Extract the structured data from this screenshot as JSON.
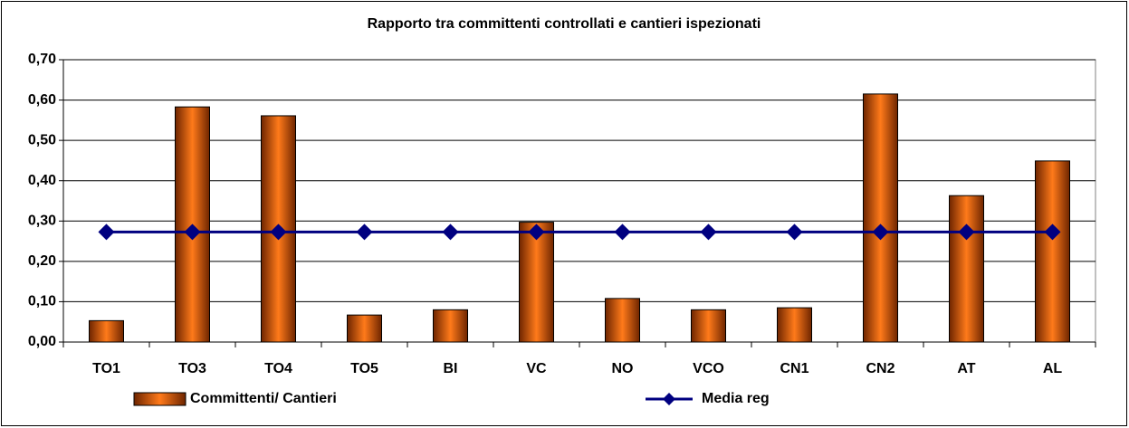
{
  "chart_data": {
    "type": "bar",
    "title": "Rapporto tra committenti controllati e cantieri ispezionati",
    "categories": [
      "TO1",
      "TO3",
      "TO4",
      "TO5",
      "BI",
      "VC",
      "NO",
      "VCO",
      "CN1",
      "CN2",
      "AT",
      "AL"
    ],
    "series": [
      {
        "name": "Committenti/ Cantieri",
        "type": "bar",
        "color": "#e8640c",
        "values": [
          0.053,
          0.583,
          0.561,
          0.067,
          0.08,
          0.297,
          0.108,
          0.08,
          0.085,
          0.615,
          0.363,
          0.449
        ]
      },
      {
        "name": "Media reg",
        "type": "line",
        "color": "#000080",
        "values": [
          0.273,
          0.273,
          0.273,
          0.273,
          0.273,
          0.273,
          0.273,
          0.273,
          0.273,
          0.273,
          0.273,
          0.273
        ]
      }
    ],
    "ylim": [
      0,
      0.7
    ],
    "yticks": [
      {
        "value": 0,
        "label": "0,00"
      },
      {
        "value": 0.1,
        "label": "0,10"
      },
      {
        "value": 0.2,
        "label": "0,20"
      },
      {
        "value": 0.3,
        "label": "0,30"
      },
      {
        "value": 0.4,
        "label": "0,40"
      },
      {
        "value": 0.5,
        "label": "0,50"
      },
      {
        "value": 0.6,
        "label": "0,60"
      },
      {
        "value": 0.7,
        "label": "0,70"
      }
    ],
    "grid": true,
    "legend": "bottom"
  }
}
